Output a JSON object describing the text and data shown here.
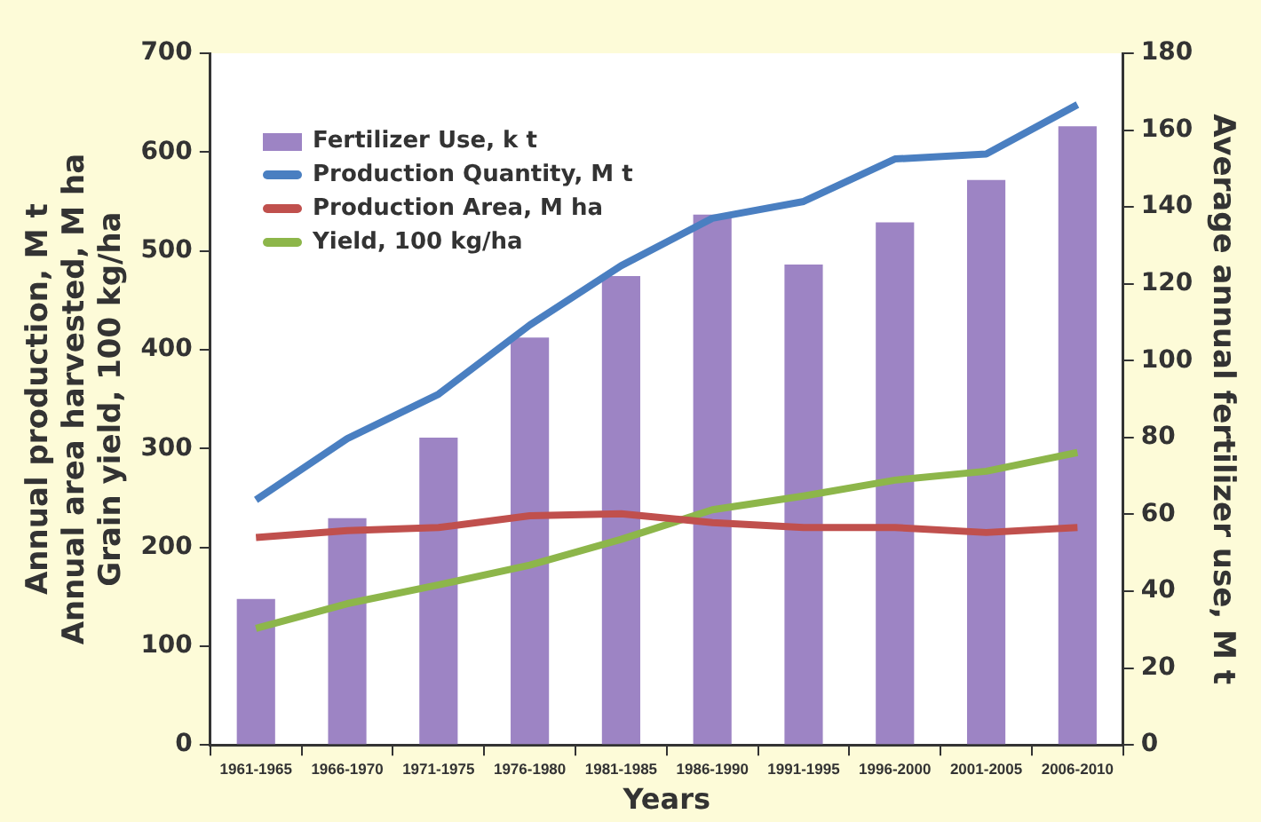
{
  "chart_data": {
    "type": "bar",
    "xlabel": "Years",
    "ylabel": "Annual production, M t\nAnnual area harvested, M ha\nGrain yield, 100 kg/ha",
    "y2label": "Average annual fertilizer use, M t",
    "categories": [
      "1961-1965",
      "1966-1970",
      "1971-1975",
      "1976-1980",
      "1981-1985",
      "1986-1990",
      "1991-1995",
      "1996-2000",
      "2001-2005",
      "2006-2010"
    ],
    "series": [
      {
        "name": "Fertilizer Use, k t",
        "axis": "y2",
        "color": "#9d84c4",
        "values": [
          38,
          59,
          80,
          106,
          122,
          138,
          125,
          136,
          147,
          161
        ]
      },
      {
        "name": "Production Quantity, M t",
        "type": "line",
        "color": "#4a7fc1",
        "values": [
          248,
          310,
          355,
          425,
          485,
          533,
          550,
          593,
          598,
          648
        ]
      },
      {
        "name": "Production Area, M ha",
        "type": "line",
        "color": "#c0504d",
        "values": [
          210,
          217,
          220,
          232,
          234,
          225,
          220,
          220,
          215,
          220
        ]
      },
      {
        "name": "Yield, 100 kg/ha",
        "type": "line",
        "color": "#8db64a",
        "values": [
          118,
          143,
          162,
          182,
          208,
          238,
          252,
          268,
          277,
          296
        ]
      }
    ],
    "ylim": [
      0,
      700
    ],
    "yticks": [
      0,
      100,
      200,
      300,
      400,
      500,
      600,
      700
    ],
    "y2lim": [
      0,
      180
    ],
    "y2ticks": [
      0,
      20,
      40,
      60,
      80,
      100,
      120,
      140,
      160,
      180
    ],
    "grid": false,
    "legend": "top left"
  }
}
